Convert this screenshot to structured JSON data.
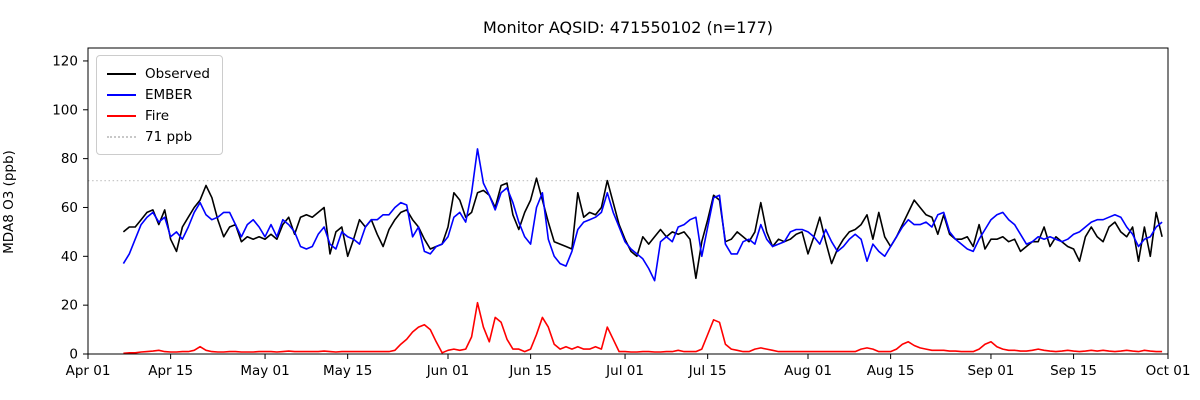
{
  "window": {
    "title": "Monitor AQSID: 471550102 (n=177)"
  },
  "chart_data": {
    "type": "line",
    "title": "Monitor AQSID: 471550102 (n=177)",
    "xlabel": "",
    "ylabel": "MDA8 O3 (ppb)",
    "ylim": [
      0,
      125.3
    ],
    "y_ticks": [
      0,
      20,
      40,
      60,
      80,
      100,
      120
    ],
    "x_total_days": 183,
    "x_ticks": [
      {
        "label": "Apr 01",
        "day": 0
      },
      {
        "label": "Apr 15",
        "day": 14
      },
      {
        "label": "May 01",
        "day": 30
      },
      {
        "label": "May 15",
        "day": 44
      },
      {
        "label": "Jun 01",
        "day": 61
      },
      {
        "label": "Jun 15",
        "day": 75
      },
      {
        "label": "Jul 01",
        "day": 91
      },
      {
        "label": "Jul 15",
        "day": 105
      },
      {
        "label": "Aug 01",
        "day": 122
      },
      {
        "label": "Aug 15",
        "day": 136
      },
      {
        "label": "Sep 01",
        "day": 153
      },
      {
        "label": "Sep 15",
        "day": 167
      },
      {
        "label": "Oct 01",
        "day": 183
      }
    ],
    "grid": false,
    "legend_position": "upper left",
    "n_points": 177,
    "start_date": "Apr 07",
    "end_date": "Sep 30",
    "start_day_offset": 6,
    "reference_line": {
      "value": 71,
      "label": "71 ppb",
      "color": "#c8c8c8",
      "style": "dotted"
    },
    "background_color": "#ffffff",
    "axis_color": "#000000",
    "series": [
      {
        "name": "Observed",
        "color": "#000000",
        "values": [
          50,
          52,
          52,
          55,
          58,
          59,
          53,
          59,
          47,
          42,
          52,
          56,
          60,
          63,
          69,
          64,
          55,
          48,
          52,
          53,
          46,
          48,
          47,
          48,
          47,
          49,
          47,
          53,
          56,
          49,
          56,
          57,
          56,
          58,
          60,
          41,
          50,
          52,
          40,
          47,
          55,
          52,
          55,
          49,
          44,
          51,
          55,
          58,
          59,
          55,
          52,
          47,
          43,
          44,
          45,
          52,
          66,
          63,
          56,
          58,
          66,
          67,
          65,
          60,
          69,
          70,
          57,
          51,
          58,
          63,
          72,
          63,
          54,
          46,
          45,
          44,
          43,
          66,
          56,
          58,
          57,
          60,
          71,
          62,
          53,
          47,
          42,
          40,
          48,
          45,
          48,
          51,
          48,
          50,
          49,
          50,
          47,
          31,
          46,
          55,
          65,
          63,
          46,
          47,
          50,
          48,
          46,
          50,
          62,
          50,
          44,
          47,
          46,
          47,
          49,
          50,
          41,
          48,
          56,
          46,
          37,
          43,
          47,
          50,
          51,
          53,
          57,
          47,
          58,
          48,
          44,
          48,
          53,
          58,
          63,
          60,
          57,
          56,
          49,
          57,
          49,
          47,
          47,
          48,
          44,
          53,
          43,
          47,
          47,
          48,
          46,
          47,
          42,
          44,
          46,
          46,
          52,
          44,
          48,
          46,
          44,
          43,
          38,
          48,
          52,
          48,
          46,
          52,
          54,
          50,
          48,
          52,
          38,
          52,
          40,
          58,
          48
        ]
      },
      {
        "name": "EMBER",
        "color": "#0000ff",
        "values": [
          37,
          41,
          47,
          53,
          56,
          58,
          54,
          56,
          48,
          50,
          47,
          52,
          58,
          62,
          57,
          55,
          56,
          58,
          58,
          53,
          48,
          53,
          55,
          52,
          48,
          53,
          48,
          55,
          53,
          50,
          44,
          43,
          44,
          49,
          52,
          45,
          43,
          50,
          48,
          47,
          45,
          52,
          55,
          55,
          57,
          57,
          60,
          62,
          61,
          48,
          52,
          42,
          41,
          44,
          45,
          48,
          56,
          58,
          54,
          66,
          84,
          70,
          65,
          59,
          66,
          68,
          62,
          54,
          48,
          45,
          60,
          66,
          47,
          40,
          37,
          36,
          42,
          51,
          54,
          55,
          56,
          58,
          66,
          58,
          52,
          46,
          43,
          41,
          39,
          35,
          30,
          46,
          48,
          46,
          52,
          53,
          55,
          56,
          40,
          52,
          64,
          65,
          45,
          41,
          41,
          46,
          47,
          45,
          53,
          47,
          44,
          45,
          46,
          50,
          51,
          51,
          50,
          48,
          45,
          51,
          46,
          42,
          44,
          47,
          49,
          47,
          38,
          45,
          42,
          40,
          44,
          48,
          52,
          55,
          53,
          53,
          54,
          52,
          57,
          58,
          50,
          47,
          45,
          43,
          42,
          47,
          51,
          55,
          57,
          58,
          55,
          53,
          49,
          45,
          46,
          48,
          47,
          48,
          47,
          46,
          47,
          49,
          50,
          52,
          54,
          55,
          55,
          56,
          57,
          56,
          52,
          49,
          44,
          47,
          48,
          52,
          54
        ]
      },
      {
        "name": "Fire",
        "color": "#ff0000",
        "values": [
          0.3,
          0.5,
          0.5,
          0.8,
          1,
          1.2,
          1.5,
          1,
          0.8,
          0.8,
          1,
          1,
          1.5,
          3,
          1.5,
          1,
          0.8,
          0.8,
          1,
          1,
          0.8,
          0.8,
          0.8,
          1,
          1,
          1,
          0.8,
          1,
          1.2,
          1,
          1,
          1,
          1,
          1,
          1.2,
          1,
          0.8,
          1,
          1,
          1,
          1,
          1,
          1,
          1,
          1,
          1,
          1.5,
          4,
          6,
          9,
          11,
          12,
          10,
          5,
          0.5,
          1.5,
          2,
          1.5,
          2,
          7,
          21,
          11,
          5,
          15,
          13,
          6,
          2,
          2,
          1,
          2,
          8,
          15,
          11,
          4,
          2,
          3,
          2,
          3,
          2,
          2,
          3,
          2,
          11,
          6,
          1,
          1,
          0.8,
          0.8,
          1,
          1,
          0.8,
          0.8,
          1,
          1,
          1.5,
          1,
          1,
          1,
          2,
          8,
          14,
          13,
          4,
          2,
          1.5,
          1,
          1,
          2,
          2.5,
          2,
          1.5,
          1,
          1,
          1,
          1,
          1,
          1,
          1,
          1,
          1,
          1,
          1,
          1,
          1,
          1,
          2,
          2.5,
          2,
          1,
          1,
          1,
          2,
          4,
          5,
          3.5,
          2.5,
          2,
          1.5,
          1.5,
          1.5,
          1.2,
          1.2,
          1,
          1,
          1,
          2,
          4,
          5,
          3,
          2,
          1.5,
          1.5,
          1.2,
          1.2,
          1.5,
          2,
          1.5,
          1.2,
          1,
          1.2,
          1.5,
          1.2,
          1,
          1.2,
          1.5,
          1.2,
          1.5,
          1.2,
          1,
          1.2,
          1.5,
          1.2,
          1,
          1.5,
          1.2,
          1,
          1
        ]
      }
    ]
  }
}
